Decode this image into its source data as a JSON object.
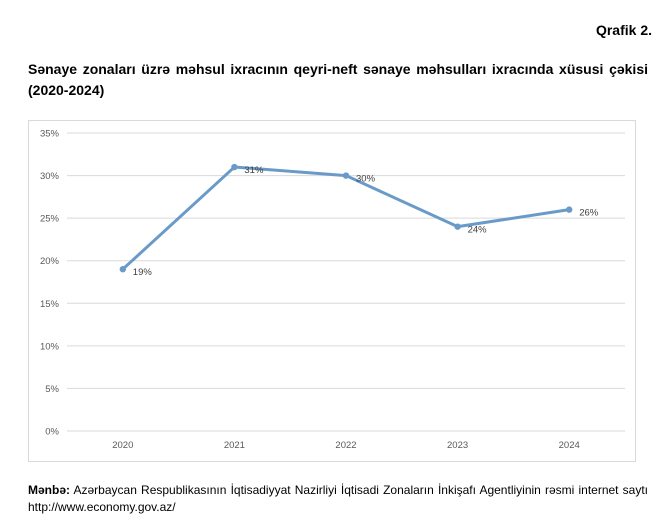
{
  "label": "Qrafik 2.",
  "source": {
    "label": "Mənbə:",
    "text": "Azərbaycan Respublikasının İqtisadiyyat Nazirliyi İqtisadi Zonaların İnkişafı Agentliyinin rəsmi internet saytı http://www.economy.gov.az/"
  },
  "chart_data": {
    "type": "line",
    "title": "Sənaye zonaları üzrə məhsul ixracının qeyri-neft sənaye məhsulları ixracında xüsusi çəkisi (2020-2024)",
    "categories": [
      "2020",
      "2021",
      "2022",
      "2023",
      "2024"
    ],
    "values": [
      19,
      31,
      30,
      24,
      26
    ],
    "data_labels": [
      "19%",
      "31%",
      "30%",
      "24%",
      "26%"
    ],
    "ylim": [
      0,
      35
    ],
    "yticks": [
      "0%",
      "5%",
      "10%",
      "15%",
      "20%",
      "25%",
      "30%",
      "35%"
    ],
    "grid": true,
    "legend": "none",
    "line_color": "#6a9bc8",
    "grid_color": "#d9d9d9"
  }
}
